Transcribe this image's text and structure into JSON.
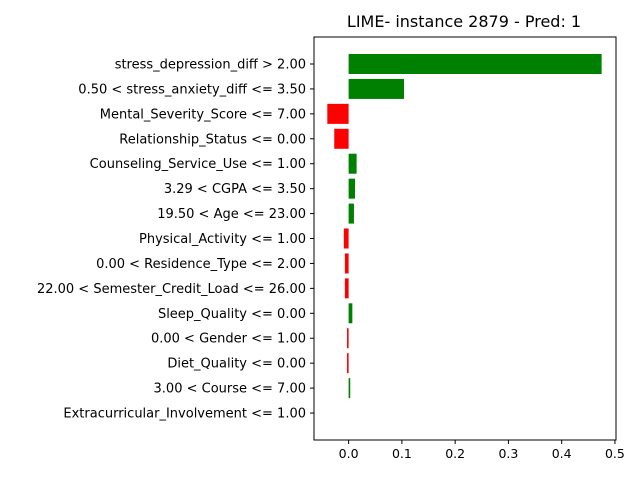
{
  "chart_data": {
    "type": "bar",
    "orientation": "horizontal",
    "title": "LIME- instance 2879 - Pred: 1",
    "xlabel": "",
    "ylabel": "",
    "categories": [
      "stress_depression_diff > 2.00",
      "0.50 < stress_anxiety_diff <= 3.50",
      "Mental_Severity_Score <= 7.00",
      "Relationship_Status <= 0.00",
      "Counseling_Service_Use <= 1.00",
      "3.29 < CGPA <= 3.50",
      "19.50 < Age <= 23.00",
      "Physical_Activity <= 1.00",
      "0.00 < Residence_Type <= 2.00",
      "22.00 < Semester_Credit_Load <= 26.00",
      "Sleep_Quality <= 0.00",
      "0.00 < Gender <= 1.00",
      "Diet_Quality <= 0.00",
      "3.00 < Course <= 7.00",
      "Extracurricular_Involvement <= 1.00"
    ],
    "values": [
      0.475,
      0.104,
      -0.04,
      -0.027,
      0.015,
      0.012,
      0.01,
      -0.009,
      -0.007,
      -0.007,
      0.007,
      -0.003,
      -0.003,
      0.003,
      0.0
    ],
    "xlim": [
      -0.065,
      0.502
    ],
    "xticks": [
      0.0,
      0.1,
      0.2,
      0.3,
      0.4,
      0.5
    ],
    "xtick_labels": [
      "0.0",
      "0.1",
      "0.2",
      "0.3",
      "0.4",
      "0.5"
    ],
    "colors": {
      "positive": "#008000",
      "negative": "#ff0000"
    },
    "grid": false,
    "legend": "none"
  }
}
